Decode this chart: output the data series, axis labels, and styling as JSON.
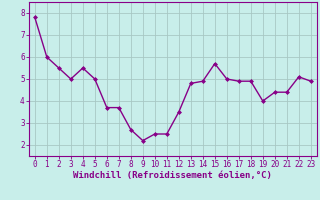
{
  "x": [
    0,
    1,
    2,
    3,
    4,
    5,
    6,
    7,
    8,
    9,
    10,
    11,
    12,
    13,
    14,
    15,
    16,
    17,
    18,
    19,
    20,
    21,
    22,
    23
  ],
  "y": [
    7.8,
    6.0,
    5.5,
    5.0,
    5.5,
    5.0,
    3.7,
    3.7,
    2.7,
    2.2,
    2.5,
    2.5,
    3.5,
    4.8,
    4.9,
    5.7,
    5.0,
    4.9,
    4.9,
    4.0,
    4.4,
    4.4,
    5.1,
    4.9
  ],
  "line_color": "#880088",
  "marker": "D",
  "markersize": 2,
  "linewidth": 1.0,
  "xlabel": "Windchill (Refroidissement éolien,°C)",
  "xlabel_fontsize": 6.5,
  "xlim": [
    -0.5,
    23.5
  ],
  "ylim": [
    1.5,
    8.5
  ],
  "yticks": [
    2,
    3,
    4,
    5,
    6,
    7,
    8
  ],
  "xticks": [
    0,
    1,
    2,
    3,
    4,
    5,
    6,
    7,
    8,
    9,
    10,
    11,
    12,
    13,
    14,
    15,
    16,
    17,
    18,
    19,
    20,
    21,
    22,
    23
  ],
  "tick_fontsize": 5.5,
  "plot_bg_color": "#c8eeea",
  "fig_bg_color": "#c8eeea",
  "grid_color": "#a8c8c4",
  "spine_color": "#880088",
  "tick_color": "#880088",
  "xlabel_color": "#880088"
}
